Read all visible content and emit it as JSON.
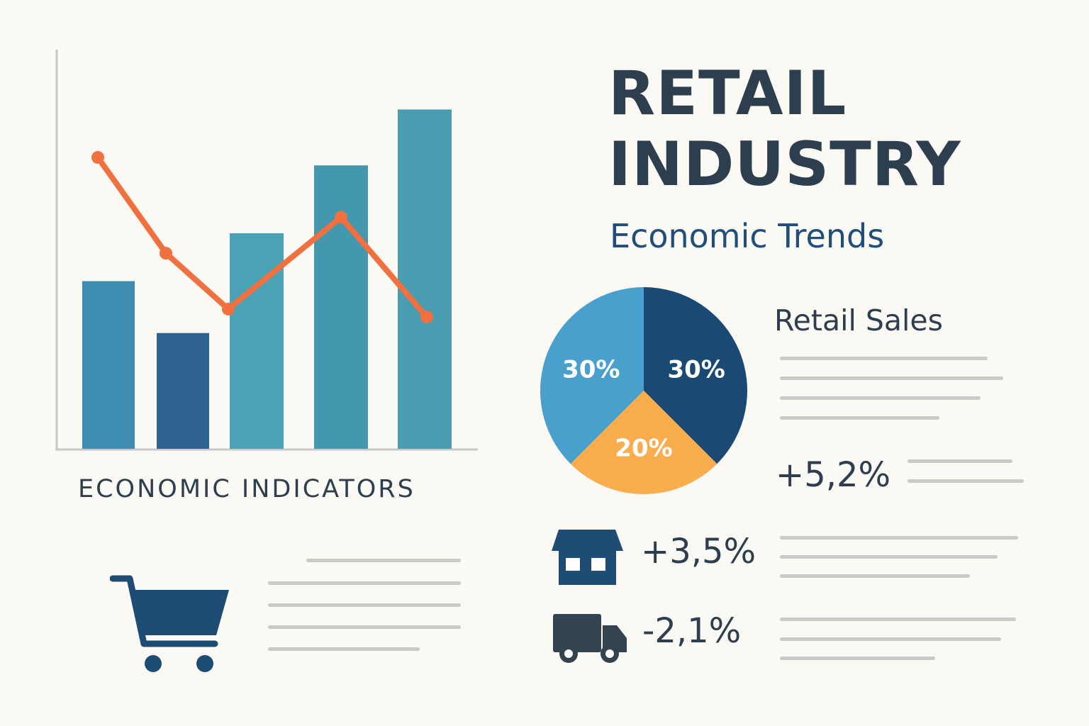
{
  "header": {
    "title_line1": "RETAIL",
    "title_line2": "INDUSTRY",
    "subtitle": "Economic Trends"
  },
  "chart_data": [
    {
      "type": "bar",
      "title": "ECONOMIC INDICATORS",
      "categories": [
        "",
        "",
        "",
        "",
        ""
      ],
      "series": [
        {
          "type": "bar",
          "values": [
            42,
            29,
            54,
            71,
            85
          ]
        },
        {
          "type": "line",
          "values": [
            73,
            49,
            35,
            58,
            33
          ]
        }
      ],
      "ylim": [
        0,
        100
      ],
      "grid": false,
      "colors": {
        "bars": [
          "#3e8cb0",
          "#2e6291",
          "#4aa3b4",
          "#4398ae",
          "#4a9cb0"
        ],
        "line": "#f07040"
      }
    },
    {
      "type": "pie",
      "slices": [
        {
          "label": "30%",
          "value": 30,
          "color": "#1a4a73"
        },
        {
          "label": "20%",
          "value": 20,
          "color": "#f9ad4c"
        },
        {
          "label": "30%",
          "value": 30,
          "color": "#4aa0cc"
        }
      ]
    }
  ],
  "retail_sales": {
    "label": "Retail Sales",
    "growth": "+5,2%"
  },
  "stats": [
    {
      "icon": "store-icon",
      "value": "+3,5%"
    },
    {
      "icon": "delivery-truck-icon",
      "value": "-2,1%"
    }
  ],
  "colors": {
    "text": "#2d3f4e",
    "accent": "#1f4e7a",
    "icon": "#1e4c74",
    "icon_dark": "#33434f"
  }
}
